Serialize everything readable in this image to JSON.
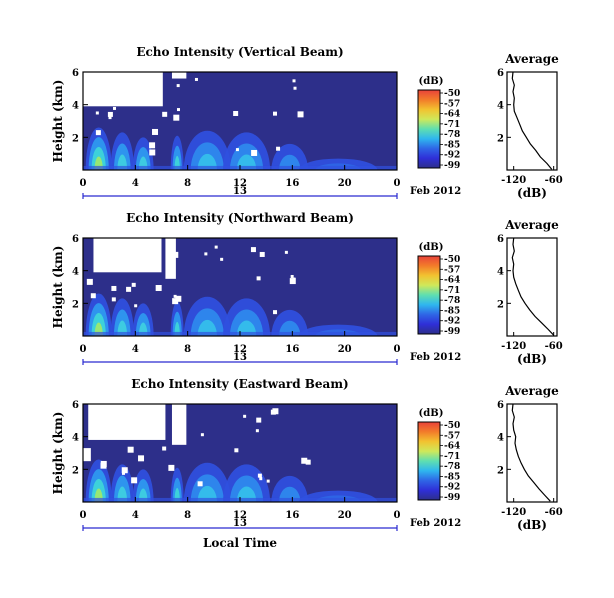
{
  "colorbar": {
    "unit": "(dB)",
    "ticks": [
      "-50",
      "-57",
      "-64",
      "-71",
      "-78",
      "-85",
      "-92",
      "-99"
    ],
    "colors": [
      "#e8423a",
      "#f27c2a",
      "#f2c230",
      "#cfe85a",
      "#5fdfb0",
      "#2fb6ef",
      "#2f66e6",
      "#2f2fd8",
      "#2d2f8a"
    ]
  },
  "shared": {
    "y_label": "Height (km)",
    "x_ticks": [
      "0",
      "4",
      "8",
      "12",
      "16",
      "20",
      "0"
    ],
    "day_label": "13",
    "date_label": "Feb 2012",
    "avg_title": "Average",
    "avg_x_ticks": [
      "-120",
      "-60"
    ],
    "avg_x_unit": "(dB)",
    "y_ticks": [
      "6",
      "4",
      "2"
    ],
    "x_axis_label": "Local Time"
  },
  "chart_data": [
    {
      "type": "heatmap",
      "title": "Echo Intensity (Vertical Beam)",
      "xlabel": "",
      "ylabel": "Height (km)",
      "x_range_hours": [
        0,
        24
      ],
      "ylim": [
        0,
        6
      ],
      "colorbar_range_db": [
        -99,
        -50
      ],
      "avg_profile": {
        "title": "Average",
        "xlabel": "(dB)",
        "xlim": [
          -130,
          -55
        ],
        "ylim": [
          0,
          6
        ],
        "height_km": [
          0.05,
          0.4,
          0.8,
          1.2,
          1.6,
          2.0,
          2.4,
          2.8,
          3.2,
          3.6,
          4.0,
          4.4,
          4.8,
          5.2,
          5.6,
          6.0
        ],
        "db": [
          -63,
          -70,
          -80,
          -87,
          -95,
          -101,
          -107,
          -111,
          -115,
          -119,
          -120,
          -119,
          -121,
          -119,
          -122,
          -121
        ]
      }
    },
    {
      "type": "heatmap",
      "title": "Echo Intensity (Northward Beam)",
      "xlabel": "",
      "ylabel": "Height (km)",
      "x_range_hours": [
        0,
        24
      ],
      "ylim": [
        0,
        6
      ],
      "colorbar_range_db": [
        -99,
        -50
      ],
      "avg_profile": {
        "title": "Average",
        "xlabel": "(dB)",
        "xlim": [
          -130,
          -55
        ],
        "ylim": [
          0,
          6
        ],
        "height_km": [
          0.05,
          0.4,
          0.8,
          1.2,
          1.6,
          2.0,
          2.4,
          2.8,
          3.2,
          3.6,
          4.0,
          4.4,
          4.8,
          5.2,
          5.6,
          6.0
        ],
        "db": [
          -60,
          -68,
          -78,
          -88,
          -96,
          -103,
          -109,
          -113,
          -117,
          -120,
          -121,
          -120,
          -122,
          -119,
          -121,
          -120
        ]
      }
    },
    {
      "type": "heatmap",
      "title": "Echo Intensity (Eastward Beam)",
      "xlabel": "Local Time",
      "ylabel": "Height (km)",
      "x_range_hours": [
        0,
        24
      ],
      "ylim": [
        0,
        6
      ],
      "colorbar_range_db": [
        -99,
        -50
      ],
      "avg_profile": {
        "title": "Average",
        "xlabel": "(dB)",
        "xlim": [
          -130,
          -55
        ],
        "ylim": [
          0,
          6
        ],
        "height_km": [
          0.05,
          0.4,
          0.8,
          1.2,
          1.6,
          2.0,
          2.4,
          2.8,
          3.2,
          3.6,
          4.0,
          4.4,
          4.8,
          5.2,
          5.6,
          6.0
        ],
        "db": [
          -65,
          -73,
          -82,
          -90,
          -98,
          -104,
          -109,
          -113,
          -116,
          -118,
          -117,
          -120,
          -121,
          -119,
          -122,
          -121
        ]
      }
    }
  ]
}
